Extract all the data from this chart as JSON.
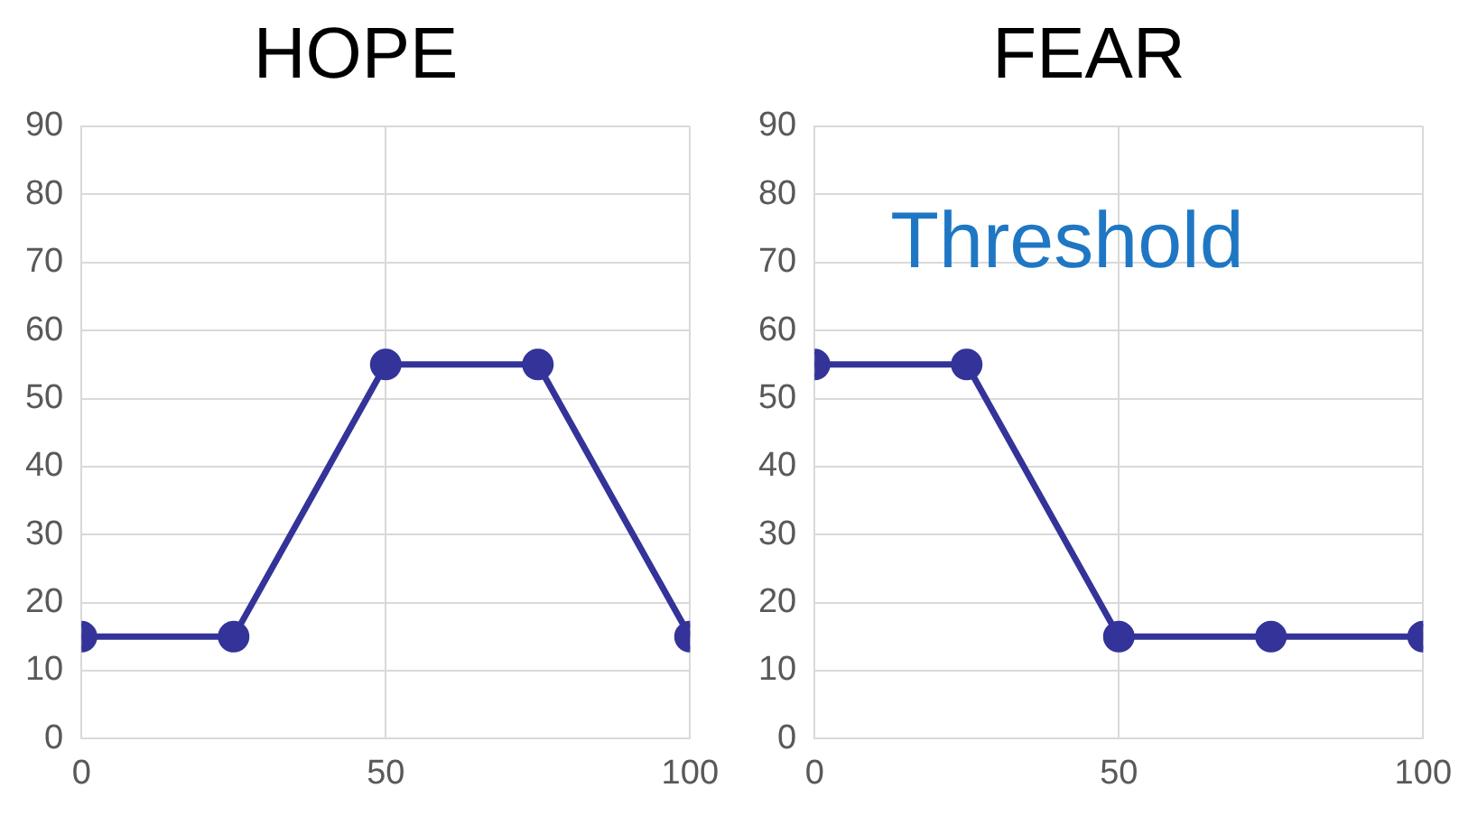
{
  "chart_data": [
    {
      "type": "line",
      "title": "HOPE",
      "x": [
        0,
        25,
        50,
        75,
        100
      ],
      "series": [
        {
          "color": "#333399",
          "values": [
            15,
            15,
            55,
            55,
            15
          ]
        }
      ],
      "xlim": [
        0,
        100
      ],
      "xticks": [
        0,
        50,
        100
      ],
      "ylim": [
        0,
        90
      ],
      "yticks": [
        0,
        10,
        20,
        30,
        40,
        50,
        60,
        70,
        80,
        90
      ],
      "grid": true,
      "legend": false,
      "marker": "circle",
      "line_style": "solid"
    },
    {
      "type": "line",
      "title": "FEAR",
      "x": [
        0,
        25,
        50,
        75,
        100
      ],
      "series": [
        {
          "color": "#333399",
          "values": [
            55,
            55,
            15,
            15,
            15
          ]
        }
      ],
      "xlim": [
        0,
        100
      ],
      "xticks": [
        0,
        50,
        100
      ],
      "ylim": [
        0,
        90
      ],
      "yticks": [
        0,
        10,
        20,
        30,
        40,
        50,
        60,
        70,
        80,
        90
      ],
      "grid": true,
      "legend": false,
      "marker": "circle",
      "line_style": "solid",
      "annotations": [
        "Threshold"
      ]
    }
  ]
}
